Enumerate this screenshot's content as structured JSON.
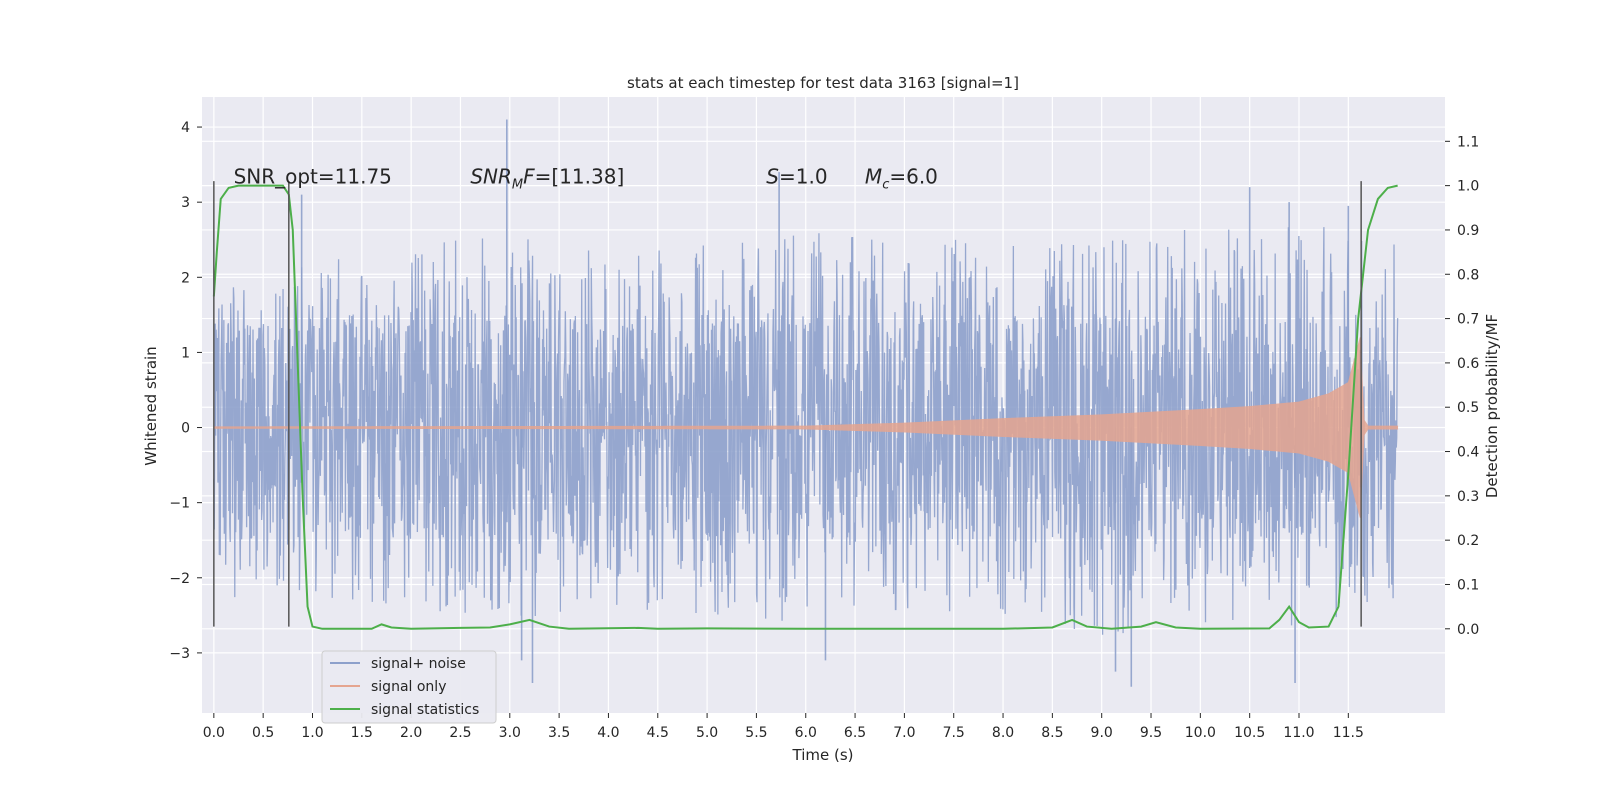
{
  "chart_data": {
    "type": "line",
    "title": "stats at each timestep for test data 3163 [signal=1]",
    "xlabel": "Time (s)",
    "ylabel": "Whitened strain",
    "y2label": "Detection probability/MF",
    "xlim": [
      -0.12,
      12.48
    ],
    "ylim": [
      -3.8,
      4.4
    ],
    "y2lim": [
      -0.19,
      1.2
    ],
    "x_ticks": [
      0.0,
      0.5,
      1.0,
      1.5,
      2.0,
      2.5,
      3.0,
      3.5,
      4.0,
      4.5,
      5.0,
      5.5,
      6.0,
      6.5,
      7.0,
      7.5,
      8.0,
      8.5,
      9.0,
      9.5,
      10.0,
      10.5,
      11.0,
      11.5
    ],
    "x_tick_labels": [
      "0.0",
      "0.5",
      "1.0",
      "1.5",
      "2.0",
      "2.5",
      "3.0",
      "3.5",
      "4.0",
      "4.5",
      "5.0",
      "5.5",
      "6.0",
      "6.5",
      "7.0",
      "7.5",
      "8.0",
      "8.5",
      "9.0",
      "9.5",
      "10.0",
      "10.5",
      "11.0",
      "11.5"
    ],
    "y_ticks": [
      -3,
      -2,
      -1,
      0,
      1,
      2,
      3,
      4
    ],
    "y_tick_labels": [
      "−3",
      "−2",
      "−1",
      "0",
      "1",
      "2",
      "3",
      "4"
    ],
    "y2_ticks": [
      0.0,
      0.1,
      0.2,
      0.3,
      0.4,
      0.5,
      0.6,
      0.7,
      0.8,
      0.9,
      1.0,
      1.1
    ],
    "y2_tick_labels": [
      "0.0",
      "0.1",
      "0.2",
      "0.3",
      "0.4",
      "0.5",
      "0.6",
      "0.7",
      "0.8",
      "0.9",
      "1.0",
      "1.1"
    ],
    "grid": true,
    "legend_position": "bottom-left",
    "annotations": [
      {
        "x": 0.2,
        "y": 3.25,
        "parts": [
          {
            "text": "SNR_opt=11.75"
          }
        ]
      },
      {
        "x": 2.6,
        "y": 3.25,
        "parts": [
          {
            "text": "SNR",
            "italic": true
          },
          {
            "text": "M",
            "italic": true,
            "sub": true
          },
          {
            "text": "F",
            "italic": true
          },
          {
            "text": "=[11.38]"
          }
        ]
      },
      {
        "x": 5.6,
        "y": 3.25,
        "parts": [
          {
            "text": "S",
            "italic": true
          },
          {
            "text": "=1.0"
          }
        ]
      },
      {
        "x": 6.6,
        "y": 3.25,
        "parts": [
          {
            "text": "M",
            "italic": true
          },
          {
            "text": "c",
            "italic": true,
            "sub": true
          },
          {
            "text": "=6.0"
          }
        ]
      }
    ],
    "vlines": [
      {
        "x": 0.0,
        "ymin": -2.65,
        "ymax": 3.28
      },
      {
        "x": 0.76,
        "ymin": -2.65,
        "ymax": 3.28
      },
      {
        "x": 11.63,
        "ymin": -2.65,
        "ymax": 3.28
      }
    ],
    "series": [
      {
        "name": "signal+ noise",
        "axis": "left",
        "style": "noise",
        "color": "#8da0cb",
        "t_start": 0.0,
        "t_end": 12.0,
        "dense_amplitude": 1.5,
        "extreme_peaks": [
          [
            2.97,
            4.1
          ],
          [
            0.89,
            3.1
          ],
          [
            5.73,
            3.4
          ],
          [
            10.9,
            3.0
          ],
          [
            11.5,
            2.95
          ],
          [
            10.5,
            3.2
          ],
          [
            3.12,
            -3.1
          ],
          [
            3.23,
            -3.4
          ],
          [
            9.14,
            -3.25
          ],
          [
            9.3,
            -3.45
          ],
          [
            10.96,
            -3.4
          ],
          [
            6.2,
            -3.1
          ]
        ],
        "top_envelope": [
          [
            0.0,
            2.0
          ],
          [
            1.0,
            2.3
          ],
          [
            2.0,
            2.4
          ],
          [
            3.0,
            2.6
          ],
          [
            4.0,
            2.4
          ],
          [
            5.0,
            2.5
          ],
          [
            6.0,
            2.6
          ],
          [
            7.0,
            2.5
          ],
          [
            8.0,
            2.5
          ],
          [
            9.0,
            2.5
          ],
          [
            10.0,
            2.7
          ],
          [
            11.0,
            2.8
          ],
          [
            12.0,
            2.5
          ]
        ],
        "bottom_envelope": [
          [
            0.0,
            -2.3
          ],
          [
            1.0,
            -2.3
          ],
          [
            2.0,
            -2.4
          ],
          [
            3.0,
            -2.6
          ],
          [
            4.0,
            -2.4
          ],
          [
            5.0,
            -2.5
          ],
          [
            6.0,
            -2.6
          ],
          [
            7.0,
            -2.5
          ],
          [
            8.0,
            -2.5
          ],
          [
            9.0,
            -2.8
          ],
          [
            10.0,
            -2.6
          ],
          [
            11.0,
            -2.7
          ],
          [
            12.0,
            -2.3
          ]
        ]
      },
      {
        "name": "signal only",
        "axis": "left",
        "style": "chirp",
        "color": "#e5a590",
        "t_start": 0.0,
        "t_end": 12.0,
        "amplitude_envelope": [
          [
            0.0,
            0.01
          ],
          [
            6.0,
            0.02
          ],
          [
            7.0,
            0.06
          ],
          [
            8.0,
            0.12
          ],
          [
            9.0,
            0.17
          ],
          [
            10.0,
            0.24
          ],
          [
            10.5,
            0.28
          ],
          [
            11.0,
            0.34
          ],
          [
            11.3,
            0.45
          ],
          [
            11.5,
            0.6
          ],
          [
            11.62,
            1.2
          ],
          [
            11.66,
            0.1
          ],
          [
            11.7,
            0.02
          ],
          [
            12.0,
            0.02
          ]
        ]
      },
      {
        "name": "signal statistics",
        "axis": "right",
        "style": "line",
        "color": "#4daf4a",
        "points": [
          [
            0.0,
            0.75
          ],
          [
            0.03,
            0.85
          ],
          [
            0.07,
            0.97
          ],
          [
            0.15,
            0.995
          ],
          [
            0.25,
            1.0
          ],
          [
            0.7,
            1.0
          ],
          [
            0.76,
            0.98
          ],
          [
            0.8,
            0.9
          ],
          [
            0.85,
            0.6
          ],
          [
            0.9,
            0.3
          ],
          [
            0.95,
            0.05
          ],
          [
            1.0,
            0.005
          ],
          [
            1.1,
            0.0
          ],
          [
            1.6,
            0.0
          ],
          [
            1.7,
            0.01
          ],
          [
            1.8,
            0.003
          ],
          [
            2.0,
            0.0
          ],
          [
            2.5,
            0.002
          ],
          [
            2.8,
            0.003
          ],
          [
            3.0,
            0.01
          ],
          [
            3.2,
            0.02
          ],
          [
            3.4,
            0.005
          ],
          [
            3.6,
            0.0
          ],
          [
            4.3,
            0.002
          ],
          [
            4.5,
            0.0
          ],
          [
            5.0,
            0.001
          ],
          [
            6.0,
            0.0
          ],
          [
            7.0,
            0.0
          ],
          [
            8.0,
            0.0
          ],
          [
            8.5,
            0.003
          ],
          [
            8.7,
            0.02
          ],
          [
            8.85,
            0.005
          ],
          [
            9.1,
            0.0
          ],
          [
            9.4,
            0.005
          ],
          [
            9.55,
            0.015
          ],
          [
            9.75,
            0.003
          ],
          [
            10.0,
            0.0
          ],
          [
            10.7,
            0.001
          ],
          [
            10.8,
            0.02
          ],
          [
            10.9,
            0.05
          ],
          [
            11.0,
            0.015
          ],
          [
            11.1,
            0.003
          ],
          [
            11.3,
            0.005
          ],
          [
            11.4,
            0.05
          ],
          [
            11.5,
            0.35
          ],
          [
            11.6,
            0.7
          ],
          [
            11.7,
            0.9
          ],
          [
            11.8,
            0.97
          ],
          [
            11.9,
            0.995
          ],
          [
            12.0,
            1.0
          ]
        ]
      }
    ]
  }
}
